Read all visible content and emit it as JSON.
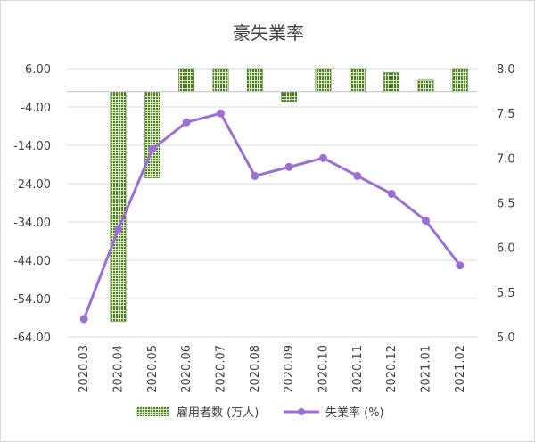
{
  "chart_data": {
    "type": "bar+line",
    "title": "豪失業率",
    "categories": [
      "2020.03",
      "2020.04",
      "2020.05",
      "2020.06",
      "2020.07",
      "2020.08",
      "2020.09",
      "2020.10",
      "2020.11",
      "2020.12",
      "2021.01",
      "2021.02"
    ],
    "series": [
      {
        "name": "雇用者数 (万人)",
        "type": "bar",
        "axis": "left",
        "color": "#5a8a2a",
        "values": [
          null,
          -60.0,
          -22.5,
          6.0,
          6.0,
          6.0,
          -2.5,
          6.0,
          6.0,
          5.0,
          3.0,
          6.0
        ]
      },
      {
        "name": "失業率 (%)",
        "type": "line",
        "axis": "right",
        "color": "#9b6fd6",
        "values": [
          5.2,
          6.2,
          7.1,
          7.4,
          7.5,
          6.8,
          6.9,
          7.0,
          6.8,
          6.6,
          6.3,
          5.8
        ]
      }
    ],
    "left_axis": {
      "ylim": [
        -64,
        6
      ],
      "ticks": [
        "6.00",
        "-4.00",
        "-14.00",
        "-24.00",
        "-34.00",
        "-44.00",
        "-54.00",
        "-64.00"
      ]
    },
    "right_axis": {
      "ylim": [
        5.0,
        8.0
      ],
      "ticks": [
        "8.0",
        "7.5",
        "7.0",
        "6.5",
        "6.0",
        "5.5",
        "5.0"
      ]
    },
    "grid": true,
    "legend": "bottom"
  }
}
